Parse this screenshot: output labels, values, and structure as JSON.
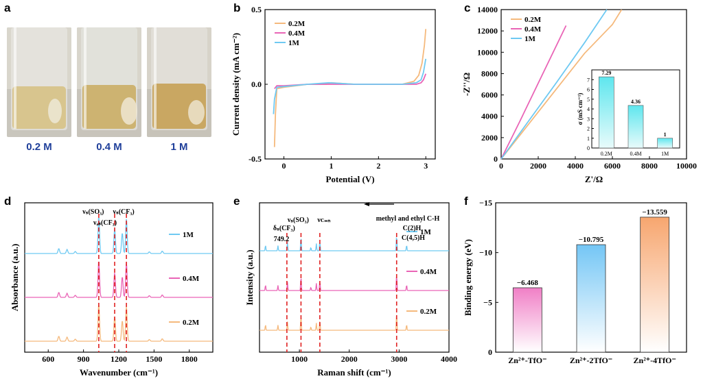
{
  "panels": {
    "a": "a",
    "b": "b",
    "c": "c",
    "d": "d",
    "e": "e",
    "f": "f"
  },
  "vials": [
    {
      "label": "0.2 M",
      "liquid": "#d8c58e"
    },
    {
      "label": "0.4 M",
      "liquid": "#cdb371"
    },
    {
      "label": "1 M",
      "liquid": "#c9a762"
    }
  ],
  "chart_data": [
    {
      "id": "b",
      "type": "line",
      "xlabel": "Potential (V)",
      "ylabel": "Current density (mA cm⁻²)",
      "xlim": [
        -0.4,
        3.2
      ],
      "ylim": [
        -0.5,
        0.5
      ],
      "xticks": [
        "0",
        "1",
        "2",
        "3"
      ],
      "yticks": [
        "-0.5",
        "0.0",
        "0.5"
      ],
      "legend": "top-left",
      "series": [
        {
          "name": "0.2M",
          "color": "#f5b97c",
          "points": [
            [
              -0.2,
              -0.42
            ],
            [
              -0.18,
              -0.2
            ],
            [
              -0.15,
              -0.03
            ],
            [
              0,
              -0.02
            ],
            [
              0.5,
              0.0
            ],
            [
              0.9,
              0.0
            ],
            [
              1.0,
              0.01
            ],
            [
              1.5,
              0.0
            ],
            [
              2.0,
              0.0
            ],
            [
              2.5,
              0.0
            ],
            [
              2.75,
              0.02
            ],
            [
              2.85,
              0.06
            ],
            [
              2.92,
              0.14
            ],
            [
              2.97,
              0.26
            ],
            [
              3.0,
              0.37
            ]
          ]
        },
        {
          "name": "0.4M",
          "color": "#e964b6",
          "points": [
            [
              -0.2,
              -0.03
            ],
            [
              -0.15,
              -0.01
            ],
            [
              0,
              -0.01
            ],
            [
              0.5,
              0.0
            ],
            [
              1.0,
              0.0
            ],
            [
              1.5,
              0.0
            ],
            [
              2.0,
              0.0
            ],
            [
              2.5,
              0.0
            ],
            [
              2.8,
              0.0
            ],
            [
              2.9,
              0.01
            ],
            [
              2.95,
              0.03
            ],
            [
              3.0,
              0.07
            ]
          ]
        },
        {
          "name": "1M",
          "color": "#6ec9f2",
          "points": [
            [
              -0.22,
              -0.2
            ],
            [
              -0.2,
              -0.1
            ],
            [
              -0.15,
              -0.02
            ],
            [
              0,
              -0.015
            ],
            [
              0.5,
              0.0
            ],
            [
              0.95,
              0.01
            ],
            [
              1.5,
              0.0
            ],
            [
              2.0,
              0.0
            ],
            [
              2.5,
              0.0
            ],
            [
              2.8,
              0.01
            ],
            [
              2.9,
              0.03
            ],
            [
              2.95,
              0.08
            ],
            [
              3.0,
              0.17
            ]
          ]
        }
      ]
    },
    {
      "id": "c",
      "type": "line",
      "xlabel": "Z'/Ω",
      "ylabel": "-Z''/Ω",
      "xlim": [
        0,
        10000
      ],
      "ylim": [
        0,
        14000
      ],
      "xticks": [
        "0",
        "2000",
        "4000",
        "6000",
        "8000",
        "10000"
      ],
      "yticks": [
        "0",
        "2000",
        "4000",
        "6000",
        "8000",
        "10000",
        "12000",
        "14000"
      ],
      "legend": "top-left",
      "series": [
        {
          "name": "0.2M",
          "color": "#f5b97c",
          "points": [
            [
              0,
              0
            ],
            [
              1500,
              3300
            ],
            [
              3000,
              6600
            ],
            [
              4500,
              9900
            ],
            [
              6000,
              12600
            ],
            [
              6500,
              14000
            ]
          ]
        },
        {
          "name": "0.4M",
          "color": "#e964b6",
          "points": [
            [
              0,
              0
            ],
            [
              1000,
              3500
            ],
            [
              2000,
              7100
            ],
            [
              3000,
              10700
            ],
            [
              3500,
              12500
            ]
          ]
        },
        {
          "name": "1M",
          "color": "#6ec9f2",
          "points": [
            [
              0,
              0
            ],
            [
              1500,
              3600
            ],
            [
              3000,
              7200
            ],
            [
              4500,
              10900
            ],
            [
              5700,
              14000
            ]
          ]
        }
      ],
      "inset": {
        "type": "bar",
        "ylabel": "σ (mS cm⁻¹)",
        "categories": [
          "0.2M",
          "0.4M",
          "1M"
        ],
        "values": [
          7.29,
          4.36,
          1
        ],
        "value_labels": [
          "7.29",
          "4.36",
          "1"
        ],
        "ylim": [
          0,
          8
        ],
        "yticks": [
          "0",
          "1",
          "2",
          "3",
          "4",
          "5",
          "6",
          "7"
        ],
        "color": "#5ee6ee"
      }
    },
    {
      "id": "d",
      "type": "line",
      "xlabel": "Wavenumber (cm⁻¹)",
      "ylabel": "Absorbance (a.u.)",
      "xlim": [
        400,
        2000
      ],
      "xticks": [
        "600",
        "900",
        "1200",
        "1500",
        "1800"
      ],
      "legend": "right",
      "annotations": [
        {
          "text": "νₛ(SO₃)",
          "x": 1030
        },
        {
          "text": "νₐₛ(CF₃)",
          "x": 1165
        },
        {
          "text": "νₛ(CF₃)",
          "x": 1265
        }
      ],
      "series": [
        {
          "name": "1M",
          "color": "#6ec9f2",
          "offset": 2
        },
        {
          "name": "0.4M",
          "color": "#e964b6",
          "offset": 1
        },
        {
          "name": "0.2M",
          "color": "#f5b97c",
          "offset": 0
        }
      ],
      "peaks": [
        [
          690,
          0.12
        ],
        [
          760,
          0.1
        ],
        [
          830,
          0.05
        ],
        [
          1030,
          0.9
        ],
        [
          1165,
          0.6
        ],
        [
          1230,
          0.5
        ],
        [
          1265,
          0.85
        ],
        [
          1460,
          0.04
        ],
        [
          1570,
          0.06
        ]
      ]
    },
    {
      "id": "e",
      "type": "line",
      "xlabel": "Raman shift (cm⁻¹)",
      "ylabel": "Intensity (a.u.)",
      "xlim": [
        200,
        4000
      ],
      "xticks": [
        "1000",
        "2000",
        "3000",
        "4000"
      ],
      "legend": "right",
      "annotations": [
        {
          "text": "δₛ(CF₃)",
          "x": 749
        },
        {
          "text": "749.2",
          "x": 749
        },
        {
          "text": "νₛ(SO₃)",
          "x": 1032
        },
        {
          "text": "νᴄ₌ₙ",
          "x": 1410
        },
        {
          "text": "methyl and ethyl C-H",
          "x": 2950
        },
        {
          "text": "C(2)H",
          "x": 2950
        },
        {
          "text": "C(4,5)H",
          "x": 2950
        }
      ],
      "series": [
        {
          "name": "1M",
          "color": "#6ec9f2",
          "offset": 2
        },
        {
          "name": "0.4M",
          "color": "#e964b6",
          "offset": 1
        },
        {
          "name": "0.2M",
          "color": "#f5b97c",
          "offset": 0
        }
      ],
      "peaks": [
        [
          320,
          0.2
        ],
        [
          570,
          0.18
        ],
        [
          760,
          0.3
        ],
        [
          1032,
          0.5
        ],
        [
          1230,
          0.12
        ],
        [
          1340,
          0.25
        ],
        [
          1410,
          0.35
        ],
        [
          2950,
          0.55
        ],
        [
          3150,
          0.2
        ]
      ]
    },
    {
      "id": "f",
      "type": "bar",
      "ylabel": "Binding energy (eV)",
      "categories": [
        "Zn²⁺-TfO⁻",
        "Zn²⁺-2TfO⁻",
        "Zn²⁺-4TfO⁻"
      ],
      "values": [
        -6.468,
        -10.795,
        -13.559
      ],
      "value_labels": [
        "−6.468",
        "−10.795",
        "−13.559"
      ],
      "ylim": [
        0,
        -15
      ],
      "yticks": [
        "0",
        "−5",
        "−10",
        "−15"
      ],
      "colors": [
        "#f07fc6",
        "#74c6f5",
        "#f7a66f"
      ]
    }
  ]
}
